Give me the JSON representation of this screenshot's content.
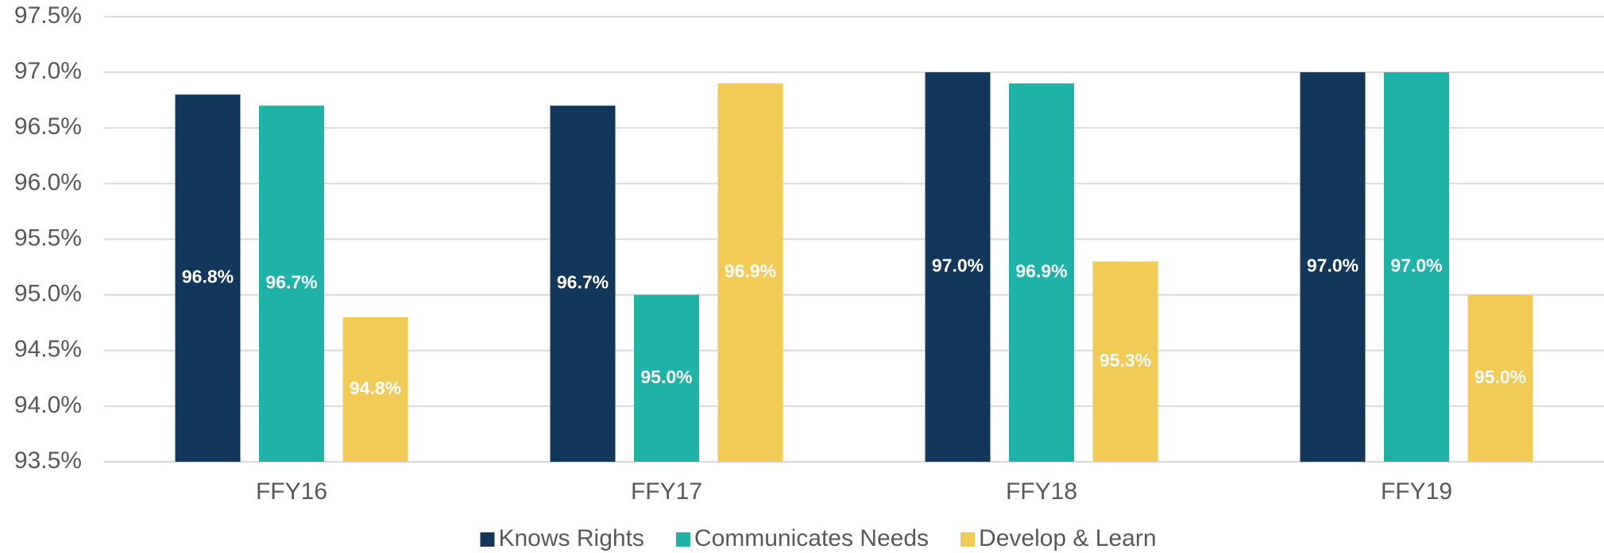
{
  "chart_data": {
    "type": "bar",
    "categories": [
      "FFY16",
      "FFY17",
      "FFY18",
      "FFY19"
    ],
    "series": [
      {
        "name": "Knows Rights",
        "color": "#12375b",
        "values": [
          96.8,
          96.7,
          97.0,
          97.0
        ],
        "value_labels": [
          "96.8%",
          "96.7%",
          "97.0%",
          "97.0%"
        ]
      },
      {
        "name": "Communicates Needs",
        "color": "#1fb3a8",
        "values": [
          96.7,
          95.0,
          96.9,
          97.0
        ],
        "value_labels": [
          "96.7%",
          "95.0%",
          "96.9%",
          "97.0%"
        ]
      },
      {
        "name": "Develop & Learn",
        "color": "#f2cb57",
        "values": [
          94.8,
          96.9,
          95.3,
          95.0
        ],
        "value_labels": [
          "94.8%",
          "96.9%",
          "95.3%",
          "95.0%"
        ]
      }
    ],
    "ylim": [
      93.5,
      97.5
    ],
    "yticks": [
      {
        "value": 93.5,
        "label": "93.5%"
      },
      {
        "value": 94.0,
        "label": "94.0%"
      },
      {
        "value": 94.5,
        "label": "94.5%"
      },
      {
        "value": 95.0,
        "label": "95.0%"
      },
      {
        "value": 95.5,
        "label": "95.5%"
      },
      {
        "value": 96.0,
        "label": "96.0%"
      },
      {
        "value": 96.5,
        "label": "96.5%"
      },
      {
        "value": 97.0,
        "label": "97.0%"
      },
      {
        "value": 97.5,
        "label": "97.5%"
      }
    ],
    "grid": true,
    "legend": "bottom"
  }
}
